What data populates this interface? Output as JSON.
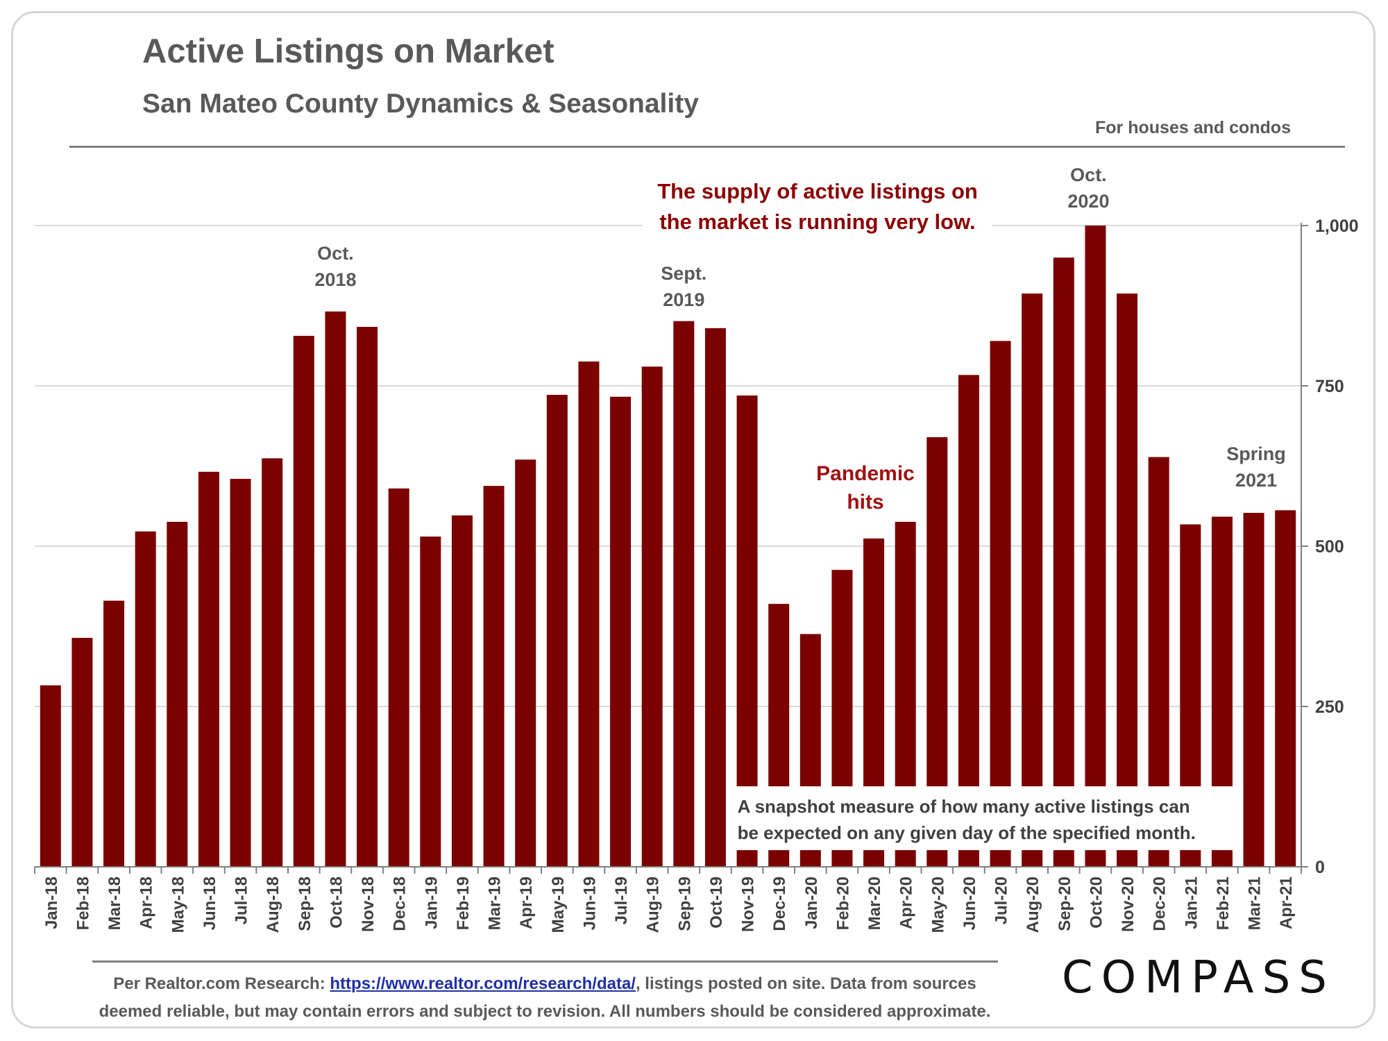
{
  "title": "Active Listings on Market",
  "subtitle": "San Mateo County Dynamics & Seasonality",
  "note": "For houses and condos",
  "footer": {
    "prefix": "Per Realtor.com Research:",
    "link": "https://www.realtor.com/research/data/",
    "suffix": ", listings posted on site. Data from sources",
    "line2": "deemed reliable, but may contain errors and subject to revision. All numbers should be considered approximate."
  },
  "logo": "COMPASS",
  "colors": {
    "bar": "#7b0000",
    "annotation_red": "#a01010",
    "text_gray": "#595959",
    "grid": "#d9d9d9"
  },
  "chart_data": {
    "type": "bar",
    "categories": [
      "Jan-18",
      "Feb-18",
      "Mar-18",
      "Apr-18",
      "May-18",
      "Jun-18",
      "Jul-18",
      "Aug-18",
      "Sep-18",
      "Oct-18",
      "Nov-18",
      "Dec-18",
      "Jan-19",
      "Feb-19",
      "Mar-19",
      "Apr-19",
      "May-19",
      "Jun-19",
      "Jul-19",
      "Aug-19",
      "Sep-19",
      "Oct-19",
      "Nov-19",
      "Dec-19",
      "Jan-20",
      "Feb-20",
      "Mar-20",
      "Apr-20",
      "May-20",
      "Jun-20",
      "Jul-20",
      "Aug-20",
      "Sep-20",
      "Oct-20",
      "Nov-20",
      "Dec-20",
      "Jan-21",
      "Feb-21",
      "Mar-21",
      "Apr-21"
    ],
    "values": [
      283,
      357,
      415,
      523,
      538,
      616,
      605,
      637,
      828,
      866,
      842,
      590,
      515,
      548,
      594,
      635,
      736,
      788,
      733,
      780,
      851,
      840,
      735,
      410,
      363,
      463,
      512,
      538,
      670,
      767,
      820,
      894,
      950,
      1000,
      894,
      639,
      534,
      546,
      552,
      556
    ],
    "ylim": [
      0,
      1000
    ],
    "yticks": [
      0,
      250,
      500,
      750,
      1000
    ],
    "ytick_labels": [
      "0",
      "250",
      "500",
      "750",
      "1,000"
    ],
    "y_axis_position": "right",
    "grid": true,
    "annotations": {
      "oct2018": [
        "Oct.",
        "2018"
      ],
      "sept2019": [
        "Sept.",
        "2019"
      ],
      "oct2020": [
        "Oct.",
        "2020"
      ],
      "spring2021": [
        "Spring",
        "2021"
      ],
      "pandemic": [
        "Pandemic",
        "hits"
      ],
      "supply": [
        "The supply of active listings on",
        "the market is running very low."
      ],
      "snapshot": [
        "A  snapshot  measure  of  how  many  active  listings  can",
        "be expected on any given day of the specified month."
      ]
    }
  }
}
